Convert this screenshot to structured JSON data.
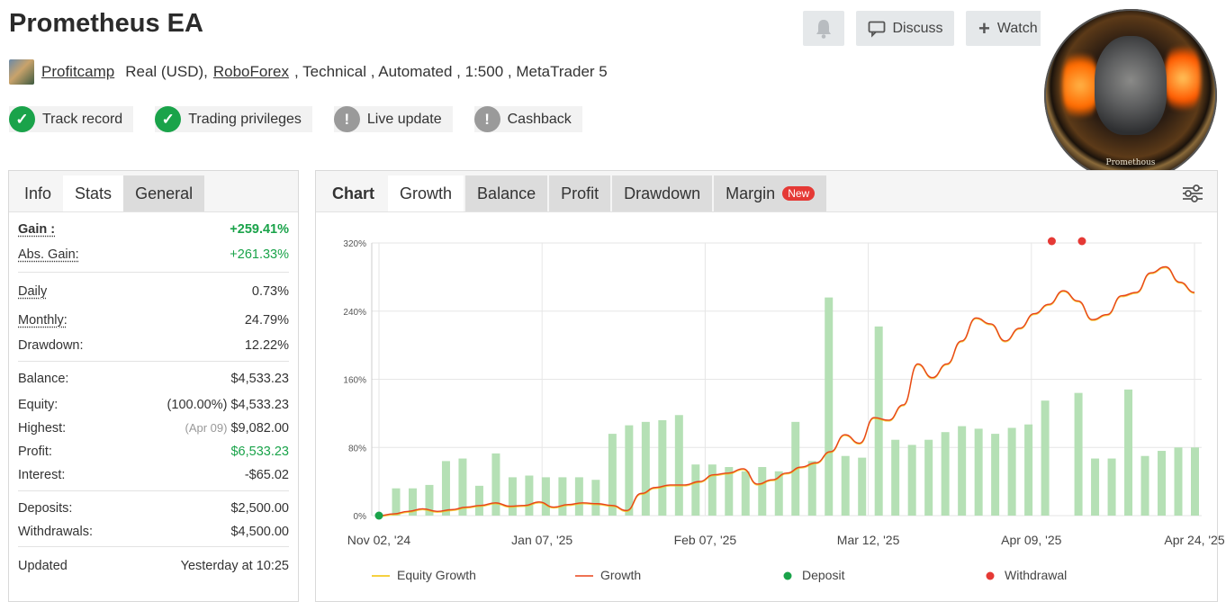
{
  "header": {
    "title": "Prometheus EA",
    "author": "Profitcamp",
    "account_type": "Real (USD),",
    "broker": "RoboForex",
    "rest": ", Technical , Automated , 1:500 , MetaTrader 5"
  },
  "badges": [
    {
      "label": "Track record",
      "status": "ok"
    },
    {
      "label": "Trading privileges",
      "status": "ok"
    },
    {
      "label": "Live update",
      "status": "warn"
    },
    {
      "label": "Cashback",
      "status": "warn"
    }
  ],
  "buttons": {
    "discuss": "Discuss",
    "watch": "Watch"
  },
  "medallion_text": "Promethous",
  "left_tabs": [
    "Info",
    "Stats",
    "General"
  ],
  "stats": {
    "gain_label": "Gain :",
    "gain": "+259.41%",
    "abs_gain_label": "Abs. Gain:",
    "abs_gain": "+261.33%",
    "daily_label": "Daily",
    "daily": "0.73%",
    "monthly_label": "Monthly:",
    "monthly": "24.79%",
    "drawdown_label": "Drawdown:",
    "drawdown": "12.22%",
    "balance_label": "Balance:",
    "balance": "$4,533.23",
    "equity_label": "Equity:",
    "equity_pct": "(100.00%)",
    "equity": "$4,533.23",
    "highest_label": "Highest:",
    "highest_date": "(Apr 09)",
    "highest": "$9,082.00",
    "profit_label": "Profit:",
    "profit": "$6,533.23",
    "interest_label": "Interest:",
    "interest": "-$65.02",
    "deposits_label": "Deposits:",
    "deposits": "$2,500.00",
    "withdrawals_label": "Withdrawals:",
    "withdrawals": "$4,500.00",
    "updated_label": "Updated",
    "updated": "Yesterday at 10:25"
  },
  "chart_tabs": {
    "label": "Chart",
    "items": [
      "Growth",
      "Balance",
      "Profit",
      "Drawdown",
      "Margin"
    ],
    "active": "Growth",
    "new_badge": "New"
  },
  "colors": {
    "growth_line": "#e8431a",
    "equity_line": "#f2c200",
    "bars": "#b5e0b5",
    "deposit": "#1aa34a",
    "withdrawal": "#e53935",
    "grid": "#e6e6e6"
  },
  "chart_data": {
    "type": "line",
    "ylim": [
      0,
      320
    ],
    "y_ticks": [
      0,
      80,
      160,
      240,
      320
    ],
    "y_tick_labels": [
      "0%",
      "80%",
      "160%",
      "240%",
      "320%"
    ],
    "x_tick_labels": [
      "Nov 02, '24",
      "Jan 07, '25",
      "Feb 07, '25",
      "Mar 12, '25",
      "Apr 09, '25",
      "Apr 24, '25"
    ],
    "legend": [
      "Equity Growth",
      "Growth",
      "Deposit",
      "Withdrawal"
    ],
    "legend_position": "bottom",
    "grid": true,
    "growth": [
      0,
      2,
      5,
      8,
      5,
      7,
      10,
      12,
      15,
      11,
      12,
      16,
      10,
      13,
      15,
      14,
      12,
      6,
      26,
      33,
      36,
      36,
      40,
      48,
      50,
      55,
      37,
      42,
      50,
      57,
      62,
      75,
      95,
      85,
      115,
      112,
      130,
      178,
      162,
      178,
      205,
      232,
      225,
      205,
      220,
      237,
      248,
      264,
      252,
      230,
      236,
      258,
      262,
      285,
      292,
      274,
      262
    ],
    "bars": [
      0,
      32,
      32,
      36,
      64,
      67,
      35,
      73,
      45,
      47,
      45,
      45,
      45,
      42,
      96,
      106,
      110,
      112,
      118,
      60,
      60,
      57,
      52,
      57,
      52,
      110,
      64,
      256,
      70,
      68,
      222,
      89,
      83,
      89,
      98,
      105,
      102,
      96,
      103,
      107,
      135,
      0,
      144,
      67,
      67,
      148,
      70,
      76,
      80,
      80
    ],
    "deposits": [
      {
        "x": 0,
        "y": 0
      }
    ],
    "withdrawals": [
      {
        "x": 0.825,
        "y": 320
      },
      {
        "x": 0.862,
        "y": 320
      }
    ]
  }
}
